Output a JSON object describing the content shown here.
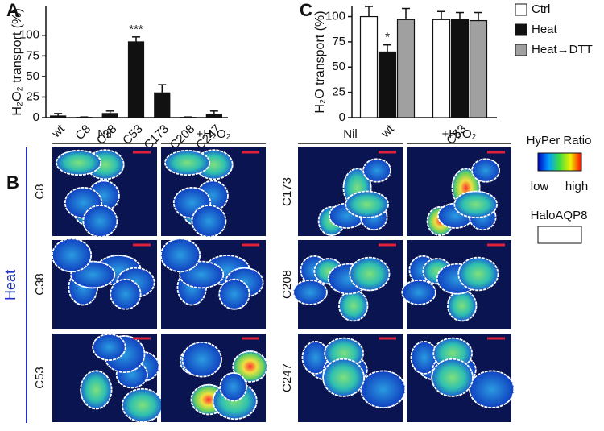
{
  "panels": {
    "a": "A",
    "b": "B",
    "c": "C"
  },
  "chart_data": [
    {
      "type": "bar",
      "ylabel": "H₂O₂ transport (%)",
      "categories": [
        "wt",
        "C8",
        "C38",
        "C53",
        "C173",
        "C208",
        "C247"
      ],
      "values": [
        2,
        0.3,
        5,
        92,
        30,
        0.3,
        4
      ],
      "errors": [
        3,
        0.5,
        3,
        6,
        10,
        0.5,
        4
      ],
      "color": "#111111",
      "ylim": [
        0,
        135
      ],
      "yticks": [
        0,
        25,
        50,
        75,
        100
      ],
      "annotations": [
        {
          "text": "***",
          "category": "C53"
        }
      ]
    },
    {
      "type": "bar",
      "ylabel": "H₂O transport (%)",
      "categories": [
        "wt",
        "C53"
      ],
      "series": [
        {
          "name": "Ctrl",
          "color": "#ffffff",
          "values": [
            100,
            97
          ],
          "errors": [
            10,
            8
          ]
        },
        {
          "name": "Heat",
          "color": "#111111",
          "values": [
            65,
            97
          ],
          "errors": [
            7,
            7
          ]
        },
        {
          "name": "Heat→DTT",
          "color": "#a0a0a0",
          "values": [
            97,
            96
          ],
          "errors": [
            11,
            8
          ]
        }
      ],
      "ylim": [
        0,
        110
      ],
      "yticks": [
        0,
        25,
        50,
        75,
        100
      ],
      "annotations": [
        {
          "text": "*",
          "category": "wt",
          "series": "Heat"
        }
      ]
    }
  ],
  "images": {
    "condition": "Heat",
    "columns": [
      "Nil",
      "+H₂O₂",
      "Nil",
      "+H₂O₂"
    ],
    "rows": [
      [
        "C8",
        "C38",
        "C53"
      ],
      [
        "C173",
        "C208",
        "C247"
      ]
    ]
  },
  "legend": {
    "title": "HyPer Ratio",
    "low": "low",
    "high": "high",
    "overlay": "HaloAQP8"
  }
}
